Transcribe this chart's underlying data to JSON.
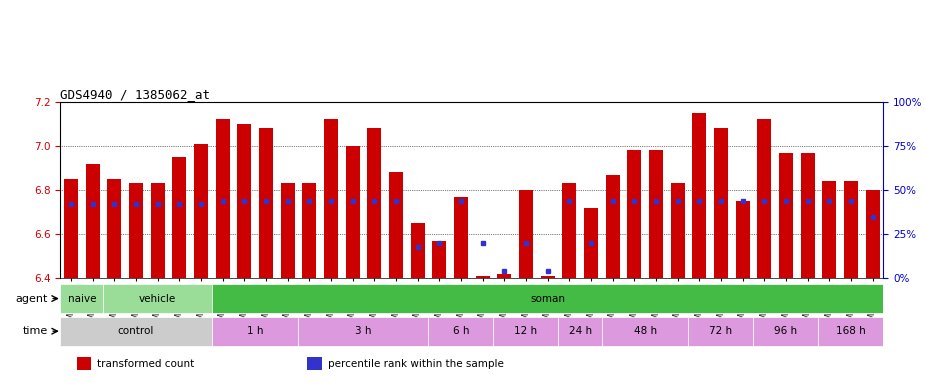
{
  "title": "GDS4940 / 1385062_at",
  "samples": [
    "GSM338857",
    "GSM338858",
    "GSM338859",
    "GSM338862",
    "GSM338864",
    "GSM338877",
    "GSM338880",
    "GSM338860",
    "GSM338861",
    "GSM338863",
    "GSM338865",
    "GSM338866",
    "GSM338867",
    "GSM338868",
    "GSM338869",
    "GSM338870",
    "GSM338871",
    "GSM338872",
    "GSM338873",
    "GSM338874",
    "GSM338875",
    "GSM338876",
    "GSM338878",
    "GSM338879",
    "GSM338881",
    "GSM338882",
    "GSM338883",
    "GSM338884",
    "GSM338885",
    "GSM338886",
    "GSM338887",
    "GSM338888",
    "GSM338889",
    "GSM338890",
    "GSM338891",
    "GSM338892",
    "GSM338893",
    "GSM338894"
  ],
  "bar_values": [
    6.85,
    6.92,
    6.85,
    6.83,
    6.83,
    6.95,
    7.01,
    7.12,
    7.1,
    7.08,
    6.83,
    6.83,
    7.12,
    7.0,
    7.08,
    6.88,
    6.65,
    6.57,
    6.77,
    6.41,
    6.42,
    6.8,
    6.41,
    6.83,
    6.72,
    6.87,
    6.98,
    6.98,
    6.83,
    7.15,
    7.08,
    6.75,
    7.12,
    6.97,
    6.97,
    6.84,
    6.84,
    6.8
  ],
  "percentile_values": [
    42,
    42,
    42,
    42,
    42,
    42,
    42,
    44,
    44,
    44,
    44,
    44,
    44,
    44,
    44,
    44,
    18,
    20,
    44,
    20,
    4,
    20,
    4,
    44,
    20,
    44,
    44,
    44,
    44,
    44,
    44,
    44,
    44,
    44,
    44,
    44,
    44,
    35
  ],
  "ylim_left": [
    6.4,
    7.2
  ],
  "ylim_right": [
    0,
    100
  ],
  "yticks_left": [
    6.4,
    6.6,
    6.8,
    7.0,
    7.2
  ],
  "yticks_right": [
    0,
    25,
    50,
    75,
    100
  ],
  "bar_color": "#cc0000",
  "dot_color": "#3333cc",
  "bar_bottom": 6.4,
  "agent_spans": [
    {
      "start": 0,
      "end": 2,
      "label": "naive",
      "color": "#99dd99"
    },
    {
      "start": 2,
      "end": 7,
      "label": "vehicle",
      "color": "#99dd99"
    },
    {
      "start": 7,
      "end": 38,
      "label": "soman",
      "color": "#44bb44"
    }
  ],
  "time_spans": [
    {
      "start": 0,
      "end": 7,
      "label": "control",
      "color": "#cccccc"
    },
    {
      "start": 7,
      "end": 11,
      "label": "1 h",
      "color": "#dd99dd"
    },
    {
      "start": 11,
      "end": 17,
      "label": "3 h",
      "color": "#dd99dd"
    },
    {
      "start": 17,
      "end": 20,
      "label": "6 h",
      "color": "#dd99dd"
    },
    {
      "start": 20,
      "end": 23,
      "label": "12 h",
      "color": "#dd99dd"
    },
    {
      "start": 23,
      "end": 25,
      "label": "24 h",
      "color": "#dd99dd"
    },
    {
      "start": 25,
      "end": 29,
      "label": "48 h",
      "color": "#dd99dd"
    },
    {
      "start": 29,
      "end": 32,
      "label": "72 h",
      "color": "#dd99dd"
    },
    {
      "start": 32,
      "end": 35,
      "label": "96 h",
      "color": "#dd99dd"
    },
    {
      "start": 35,
      "end": 38,
      "label": "168 h",
      "color": "#dd99dd"
    }
  ],
  "legend_items": [
    {
      "label": "transformed count",
      "color": "#cc0000"
    },
    {
      "label": "percentile rank within the sample",
      "color": "#3333cc"
    }
  ],
  "bg_color": "#ffffff",
  "grid_color": "#000000",
  "right_axis_color": "#0000cc",
  "left_axis_color": "#cc0000"
}
